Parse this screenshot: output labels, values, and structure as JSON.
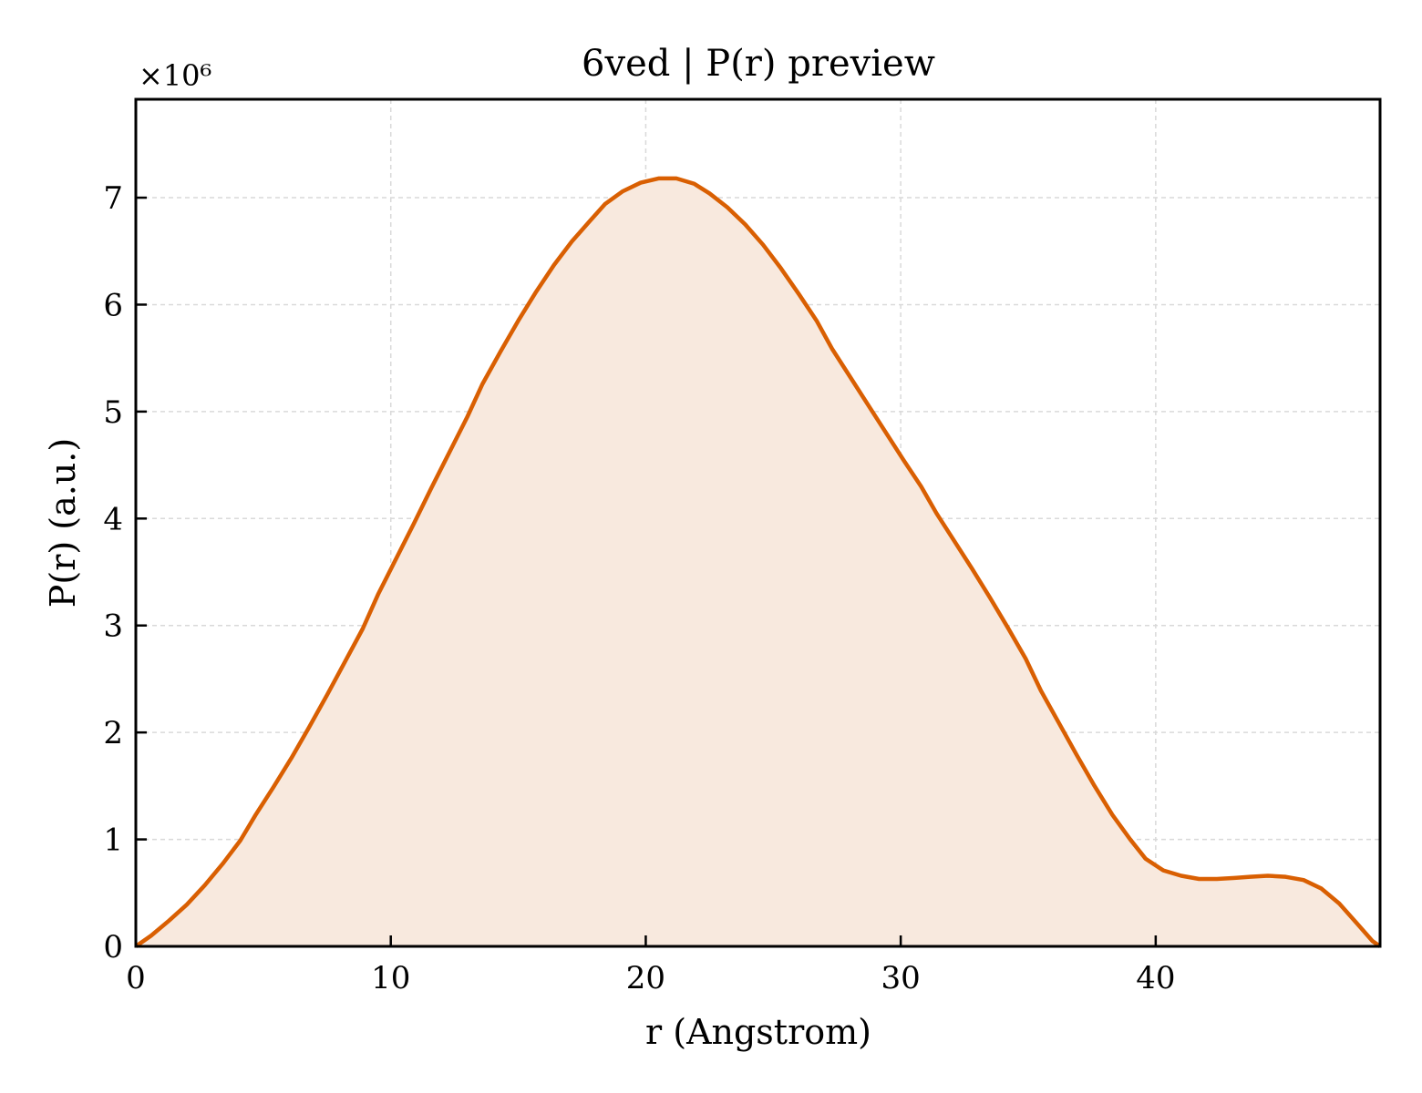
{
  "chart_data": {
    "type": "area",
    "title": "6ved | P(r) preview",
    "xlabel": "r (Angstrom)",
    "ylabel": "P(r) (a.u.)",
    "y_multiplier_label": "×10⁶",
    "xlim": [
      0,
      48.8
    ],
    "ylim": [
      0,
      7.92
    ],
    "y_scale_note": "values in units of 1e6",
    "x_ticks": [
      0,
      10,
      20,
      30,
      40
    ],
    "y_ticks": [
      0,
      1,
      2,
      3,
      4,
      5,
      6,
      7
    ],
    "x_tick_labels": [
      "0",
      "10",
      "20",
      "30",
      "40"
    ],
    "y_tick_labels": [
      "0",
      "1",
      "2",
      "3",
      "4",
      "5",
      "6",
      "7"
    ],
    "grid": true,
    "legend": "none",
    "line_color": "#D95F02",
    "fill_color": "#F8E9DE",
    "series": [
      {
        "x": [
          0,
          0.6,
          1.3,
          2.0,
          2.7,
          3.4,
          4.1,
          4.7,
          5.4,
          6.1,
          6.8,
          7.5,
          8.2,
          8.9,
          9.5,
          10.2,
          10.9,
          11.6,
          12.3,
          13.0,
          13.6,
          14.3,
          15.0,
          15.7,
          16.4,
          17.1,
          17.8,
          18.4,
          19.1,
          19.8,
          20.5,
          21.2,
          21.9,
          22.5,
          23.2,
          23.9,
          24.6,
          25.3,
          26.0,
          26.7,
          27.3,
          28.0,
          28.7,
          29.4,
          30.1,
          30.8,
          31.4,
          32.1,
          32.8,
          33.5,
          34.2,
          34.9,
          35.5,
          36.2,
          36.9,
          37.6,
          38.3,
          39.0,
          39.6,
          40.3,
          41.0,
          41.7,
          42.4,
          43.1,
          43.7,
          44.4,
          45.1,
          45.8,
          46.5,
          47.2,
          47.8,
          48.5,
          48.8
        ],
        "y": [
          0,
          0.1,
          0.24,
          0.39,
          0.57,
          0.77,
          0.99,
          1.23,
          1.49,
          1.76,
          2.05,
          2.35,
          2.66,
          2.97,
          3.29,
          3.62,
          3.95,
          4.29,
          4.62,
          4.95,
          5.26,
          5.56,
          5.85,
          6.12,
          6.37,
          6.59,
          6.78,
          6.94,
          7.06,
          7.14,
          7.18,
          7.18,
          7.13,
          7.04,
          6.91,
          6.75,
          6.56,
          6.34,
          6.1,
          5.85,
          5.59,
          5.33,
          5.07,
          4.81,
          4.55,
          4.3,
          4.05,
          3.79,
          3.53,
          3.26,
          2.98,
          2.69,
          2.39,
          2.09,
          1.79,
          1.5,
          1.23,
          1.0,
          0.82,
          0.71,
          0.66,
          0.63,
          0.63,
          0.64,
          0.65,
          0.66,
          0.65,
          0.62,
          0.54,
          0.4,
          0.24,
          0.05,
          0
        ]
      }
    ]
  }
}
